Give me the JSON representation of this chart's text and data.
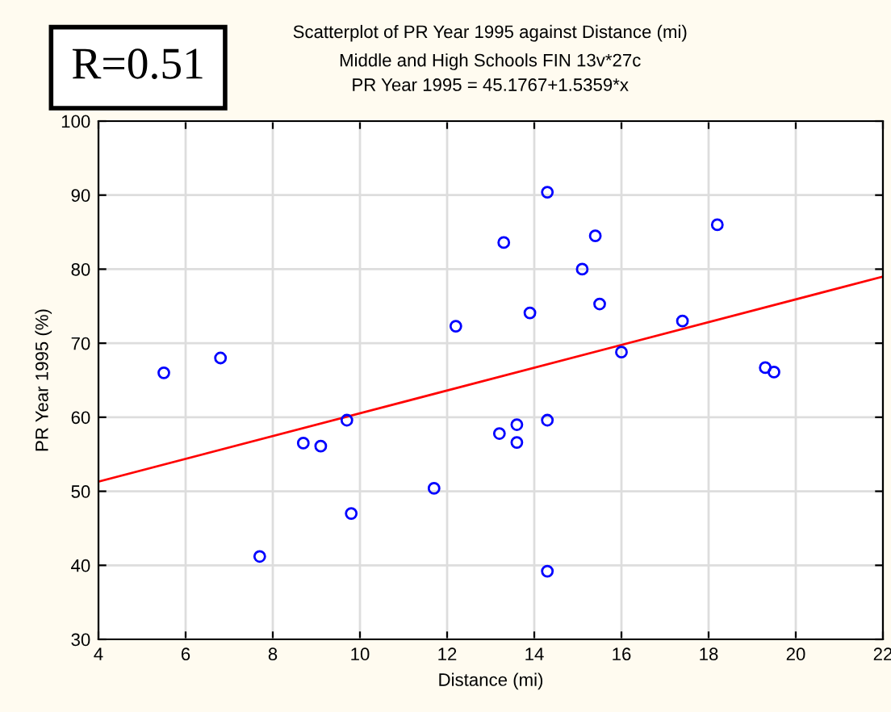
{
  "chart_data": {
    "type": "scatter",
    "title": "Scatterplot of PR Year 1995 against Distance (mi)",
    "subtitle": "Middle and High Schools FIN 13v*27c\nPR Year 1995 = 45.1767+1.5359*x",
    "xlabel": "Distance (mi)",
    "ylabel": "PR Year 1995 (%)",
    "annotations": [
      "R=0.51"
    ],
    "series": [
      {
        "color": "#0000ff",
        "marker": "circle",
        "x": [
          5.5,
          6.8,
          7.7,
          8.7,
          9.1,
          9.7,
          9.8,
          11.7,
          12.2,
          13.2,
          13.3,
          13.6,
          13.6,
          13.9,
          14.3,
          14.3,
          14.3,
          15.1,
          15.4,
          15.5,
          16.0,
          17.4,
          18.2,
          19.3,
          19.5
        ],
        "values": [
          66,
          68,
          41.2,
          56.5,
          56.1,
          59.6,
          47,
          50.4,
          72.3,
          57.8,
          83.6,
          59,
          56.6,
          74.1,
          90.4,
          59.6,
          39.2,
          80,
          84.5,
          75.3,
          68.8,
          73,
          86,
          66.7,
          66.1
        ]
      },
      {
        "type": "line",
        "color": "#ff0000",
        "x": [
          4,
          22
        ],
        "values": [
          51.3,
          79.0
        ]
      }
    ],
    "xlim": [
      4,
      22
    ],
    "ylim": [
      30,
      100
    ],
    "xticks": [
      4,
      6,
      8,
      10,
      12,
      14,
      16,
      18,
      20,
      22
    ],
    "yticks": [
      30,
      40,
      50,
      60,
      70,
      80,
      90,
      100
    ],
    "grid": true
  }
}
